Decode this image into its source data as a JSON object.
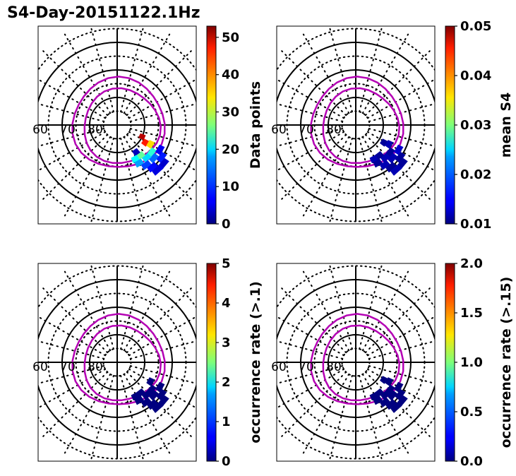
{
  "figure_title": "S4-Day-20151122.1Hz",
  "chart_data": [
    {
      "type": "heatmap",
      "projection": "polar",
      "title": "",
      "colormap": "jet",
      "colorbar_label": "Data points",
      "clim": [
        0,
        53
      ],
      "colorbar_ticks": [
        "0",
        "10",
        "20",
        "30",
        "40",
        "50"
      ],
      "colorbar_tick_values": [
        0,
        10,
        20,
        30,
        40,
        50
      ],
      "radial_labels": [
        "60",
        "70",
        "80"
      ],
      "magnetic_latitude_circles": [
        60,
        70,
        80
      ],
      "ovals": [
        "inner oval boundary",
        "outer oval boundary"
      ],
      "cells": [
        {
          "mlat": 78,
          "mlt_deg": -32,
          "value": 45
        },
        {
          "mlat": 76,
          "mlt_deg": -30,
          "value": 35
        },
        {
          "mlat": 80,
          "mlt_deg": -25,
          "value": 50
        },
        {
          "mlat": 74,
          "mlt_deg": -38,
          "value": 22
        },
        {
          "mlat": 72,
          "mlt_deg": -42,
          "value": 12
        },
        {
          "mlat": 70,
          "mlt_deg": -36,
          "value": 8
        },
        {
          "mlat": 72,
          "mlt_deg": -30,
          "value": 6
        },
        {
          "mlat": 68,
          "mlt_deg": -40,
          "value": 4
        },
        {
          "mlat": 74,
          "mlt_deg": -48,
          "value": 18
        },
        {
          "mlat": 76,
          "mlt_deg": -52,
          "value": 25
        },
        {
          "mlat": 78,
          "mlt_deg": -55,
          "value": 3
        },
        {
          "mlat": 76,
          "mlt_deg": -62,
          "value": 20
        },
        {
          "mlat": 74,
          "mlt_deg": -60,
          "value": 15
        },
        {
          "mlat": 72,
          "mlt_deg": -54,
          "value": 10
        },
        {
          "mlat": 70,
          "mlt_deg": -50,
          "value": 7
        },
        {
          "mlat": 68,
          "mlt_deg": -48,
          "value": 5
        }
      ]
    },
    {
      "type": "heatmap",
      "projection": "polar",
      "title": "",
      "colormap": "jet",
      "colorbar_label": "mean S4",
      "clim": [
        0.01,
        0.05
      ],
      "colorbar_ticks": [
        "0.01",
        "0.02",
        "0.03",
        "0.04",
        "0.05"
      ],
      "colorbar_tick_values": [
        0.01,
        0.02,
        0.03,
        0.04,
        0.05
      ],
      "radial_labels": [
        "60",
        "70",
        "80"
      ],
      "magnetic_latitude_circles": [
        60,
        70,
        80
      ],
      "ovals": [
        "inner oval boundary",
        "outer oval boundary"
      ],
      "cells": [
        {
          "mlat": 78,
          "mlt_deg": -32,
          "value": 0.011
        },
        {
          "mlat": 76,
          "mlt_deg": -30,
          "value": 0.012
        },
        {
          "mlat": 74,
          "mlt_deg": -38,
          "value": 0.011
        },
        {
          "mlat": 72,
          "mlt_deg": -42,
          "value": 0.012
        },
        {
          "mlat": 70,
          "mlt_deg": -36,
          "value": 0.011
        },
        {
          "mlat": 72,
          "mlt_deg": -30,
          "value": 0.013
        },
        {
          "mlat": 68,
          "mlt_deg": -40,
          "value": 0.011
        },
        {
          "mlat": 74,
          "mlt_deg": -48,
          "value": 0.012
        },
        {
          "mlat": 76,
          "mlt_deg": -52,
          "value": 0.011
        },
        {
          "mlat": 76,
          "mlt_deg": -62,
          "value": 0.012
        },
        {
          "mlat": 74,
          "mlt_deg": -60,
          "value": 0.011
        },
        {
          "mlat": 72,
          "mlt_deg": -54,
          "value": 0.012
        },
        {
          "mlat": 70,
          "mlt_deg": -50,
          "value": 0.011
        },
        {
          "mlat": 68,
          "mlt_deg": -48,
          "value": 0.012
        }
      ]
    },
    {
      "type": "heatmap",
      "projection": "polar",
      "title": "",
      "colormap": "jet",
      "colorbar_label": "occurrence rate (>.1)",
      "clim": [
        0,
        5
      ],
      "colorbar_ticks": [
        "0",
        "1",
        "2",
        "3",
        "4",
        "5"
      ],
      "colorbar_tick_values": [
        0,
        1,
        2,
        3,
        4,
        5
      ],
      "radial_labels": [
        "60",
        "70",
        "80"
      ],
      "magnetic_latitude_circles": [
        60,
        70,
        80
      ],
      "ovals": [
        "inner oval boundary",
        "outer oval boundary"
      ],
      "cells": [
        {
          "mlat": 76,
          "mlt_deg": -30,
          "value": 0
        },
        {
          "mlat": 74,
          "mlt_deg": -38,
          "value": 0
        },
        {
          "mlat": 72,
          "mlt_deg": -42,
          "value": 0
        },
        {
          "mlat": 70,
          "mlt_deg": -36,
          "value": 0
        },
        {
          "mlat": 72,
          "mlt_deg": -30,
          "value": 0
        },
        {
          "mlat": 68,
          "mlt_deg": -40,
          "value": 0
        },
        {
          "mlat": 74,
          "mlt_deg": -48,
          "value": 0
        },
        {
          "mlat": 76,
          "mlt_deg": -52,
          "value": 0
        },
        {
          "mlat": 76,
          "mlt_deg": -62,
          "value": 0
        },
        {
          "mlat": 74,
          "mlt_deg": -60,
          "value": 0
        },
        {
          "mlat": 72,
          "mlt_deg": -54,
          "value": 0
        },
        {
          "mlat": 70,
          "mlt_deg": -50,
          "value": 0
        },
        {
          "mlat": 68,
          "mlt_deg": -48,
          "value": 0
        }
      ]
    },
    {
      "type": "heatmap",
      "projection": "polar",
      "title": "",
      "colormap": "jet",
      "colorbar_label": "occurrence rate (>.15)",
      "clim": [
        0,
        2
      ],
      "colorbar_ticks": [
        "0.0",
        "0.5",
        "1.0",
        "1.5",
        "2.0"
      ],
      "colorbar_tick_values": [
        0,
        0.5,
        1.0,
        1.5,
        2.0
      ],
      "radial_labels": [
        "60",
        "70",
        "80"
      ],
      "magnetic_latitude_circles": [
        60,
        70,
        80
      ],
      "ovals": [
        "inner oval boundary",
        "outer oval boundary"
      ],
      "cells": [
        {
          "mlat": 78,
          "mlt_deg": -32,
          "value": 0
        },
        {
          "mlat": 76,
          "mlt_deg": -30,
          "value": 0
        },
        {
          "mlat": 74,
          "mlt_deg": -38,
          "value": 0
        },
        {
          "mlat": 72,
          "mlt_deg": -42,
          "value": 0
        },
        {
          "mlat": 70,
          "mlt_deg": -36,
          "value": 0
        },
        {
          "mlat": 72,
          "mlt_deg": -30,
          "value": 0
        },
        {
          "mlat": 68,
          "mlt_deg": -40,
          "value": 0
        },
        {
          "mlat": 74,
          "mlt_deg": -48,
          "value": 0
        },
        {
          "mlat": 76,
          "mlt_deg": -52,
          "value": 0
        },
        {
          "mlat": 76,
          "mlt_deg": -62,
          "value": 0
        },
        {
          "mlat": 74,
          "mlt_deg": -60,
          "value": 0
        },
        {
          "mlat": 72,
          "mlt_deg": -54,
          "value": 0
        },
        {
          "mlat": 70,
          "mlt_deg": -50,
          "value": 0
        },
        {
          "mlat": 68,
          "mlt_deg": -48,
          "value": 0
        }
      ]
    }
  ]
}
